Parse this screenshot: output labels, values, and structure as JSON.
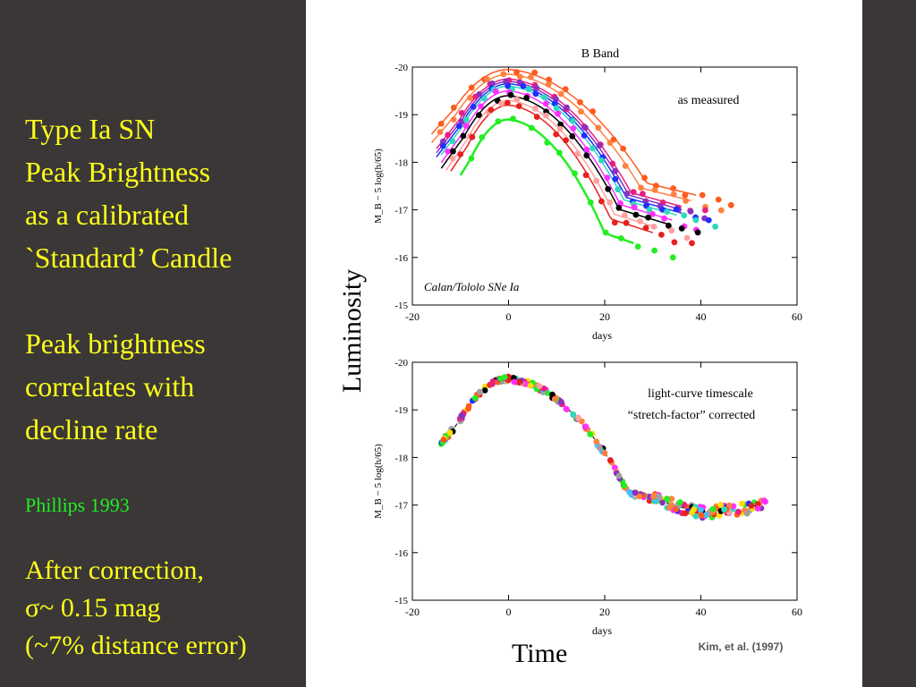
{
  "left": {
    "title_lines": [
      "Type Ia SN",
      "Peak Brightness",
      "as a calibrated",
      "`Standard’ Candle"
    ],
    "corr_lines": [
      "Peak brightness",
      "correlates with",
      "decline rate"
    ],
    "citation": "Phillips 1993",
    "after_lines": [
      "After correction,",
      "σ~ 0.15 mag",
      "(~7% distance error)"
    ]
  },
  "labels": {
    "luminosity": "Luminosity",
    "time": "Time"
  },
  "colors": {
    "background": "#3a3736",
    "text_yellow": "#ffff1a",
    "text_green": "#22ee22"
  },
  "chart_data": [
    {
      "type": "line",
      "title": "B Band",
      "annotation": "as measured",
      "source_label": "Calan/Tololo SNe Ia",
      "xlabel": "days",
      "ylabel": "M_B − 5 log(h/65)",
      "xlim": [
        -20,
        60
      ],
      "ylim": [
        -15,
        -20
      ],
      "xticks": [
        -20,
        0,
        20,
        40,
        60
      ],
      "yticks": [
        -20,
        -19,
        -18,
        -17,
        -16,
        -15
      ],
      "series": [
        {
          "color": "#ff5a20",
          "peak": -19.95,
          "stretch": 1.15,
          "t0": -16,
          "t1": 39
        },
        {
          "color": "#ff8040",
          "peak": -19.85,
          "stretch": 1.1,
          "t0": -16,
          "t1": 38
        },
        {
          "color": "#e81f80",
          "peak": -19.75,
          "stretch": 1.02,
          "t0": -15,
          "t1": 36
        },
        {
          "color": "#8a30c0",
          "peak": -19.7,
          "stretch": 1.0,
          "t0": -15,
          "t1": 36
        },
        {
          "color": "#2030ff",
          "peak": -19.65,
          "stretch": 0.98,
          "t0": -15,
          "t1": 36
        },
        {
          "color": "#30d8c0",
          "peak": -19.6,
          "stretch": 0.96,
          "t0": -14,
          "t1": 35
        },
        {
          "color": "#ff30ff",
          "peak": -19.5,
          "stretch": 0.93,
          "t0": -14,
          "t1": 34
        },
        {
          "color": "#000000",
          "peak": -19.4,
          "stretch": 0.92,
          "t0": -14,
          "t1": 33
        },
        {
          "color": "#ffa0a0",
          "peak": -19.3,
          "stretch": 0.88,
          "t0": -13,
          "t1": 31
        },
        {
          "color": "#e82020",
          "peak": -19.2,
          "stretch": 0.85,
          "t0": -12,
          "t1": 30
        },
        {
          "color": "#22ee22",
          "peak": -18.9,
          "stretch": 0.8,
          "t0": -10,
          "t1": 26
        }
      ]
    },
    {
      "type": "scatter",
      "annotation_lines": [
        "light-curve timescale",
        "“stretch-factor” corrected"
      ],
      "source_label": "Kim, et al. (1997)",
      "xlabel": "days",
      "ylabel": "M_B − 5 log(h/65)",
      "xlim": [
        -20,
        60
      ],
      "ylim": [
        -15,
        -20
      ],
      "xticks": [
        -20,
        0,
        20,
        40,
        60
      ],
      "yticks": [
        -20,
        -19,
        -18,
        -17,
        -16,
        -15
      ],
      "template": {
        "peak": -19.65,
        "stretch": 1.0,
        "t0": -15,
        "t1": 40
      }
    }
  ]
}
